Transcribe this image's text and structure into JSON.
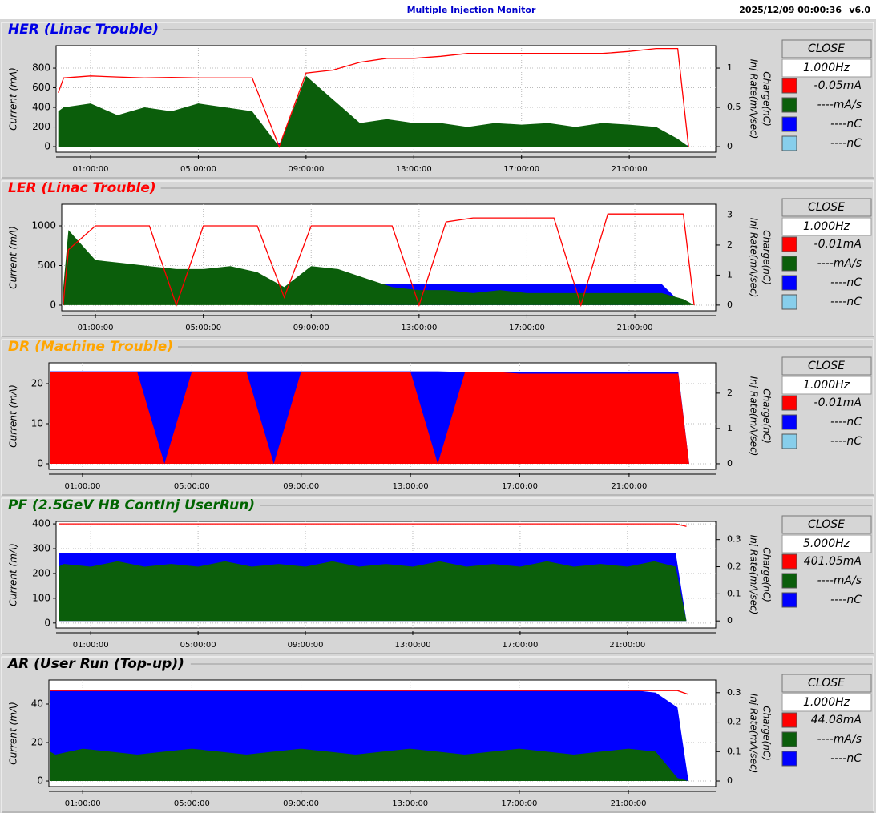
{
  "header": {
    "title": "Multiple Injection Monitor",
    "timestamp": "2025/12/09 00:00:36",
    "version": "v6.0"
  },
  "chart_data": [
    {
      "type": "line",
      "title": "HER  (Linac Trouble)",
      "title_color": "#0000e6",
      "button": "CLOSE",
      "rate": "1.000Hz",
      "ylabel": "Current (mA)",
      "y2labels": [
        "Charge(nC)",
        "Inj Rate(mA/sec)"
      ],
      "grid": true,
      "x": [
        -0.2,
        0,
        1,
        2,
        3,
        4,
        5,
        6,
        7,
        8,
        9,
        10,
        11,
        12,
        13,
        14,
        15,
        16,
        17,
        18,
        19,
        20,
        21,
        22,
        22.8,
        23.2
      ],
      "xlim": [
        -0.28,
        24.21
      ],
      "xticks": [
        {
          "value": 1,
          "label": "01:00:00"
        },
        {
          "value": 5,
          "label": "05:00:00"
        },
        {
          "value": 9,
          "label": "09:00:00"
        },
        {
          "value": 13,
          "label": "13:00:00"
        },
        {
          "value": 17,
          "label": "17:00:00"
        },
        {
          "value": 21,
          "label": "21:00:00"
        }
      ],
      "ylim": [
        -57,
        1029
      ],
      "yticks": [
        0,
        200,
        400,
        600,
        800
      ],
      "y2lim": [
        -0.071,
        1.286
      ],
      "y2ticks": [
        0,
        0.5,
        1
      ],
      "series": [
        {
          "name": "-0.05mA",
          "color": "#ff0000",
          "style": "line",
          "axis": "y",
          "values": [
            550,
            700,
            720,
            710,
            700,
            705,
            700,
            700,
            700,
            0,
            750,
            780,
            860,
            900,
            900,
            920,
            950,
            950,
            950,
            950,
            950,
            950,
            970,
            1000,
            1000,
            0
          ]
        },
        {
          "name": "----mA/s",
          "color": "#0b5e0b",
          "style": "area",
          "axis": "y2",
          "values": [
            0.45,
            0.5,
            0.55,
            0.4,
            0.5,
            0.45,
            0.55,
            0.5,
            0.45,
            0,
            0.9,
            0.6,
            0.3,
            0.35,
            0.3,
            0.3,
            0.25,
            0.3,
            0.28,
            0.3,
            0.25,
            0.3,
            0.28,
            0.25,
            0.1,
            0
          ]
        },
        {
          "name": "----nC",
          "color": "#0000ff",
          "style": "area",
          "axis": "y2",
          "values": [
            0,
            0,
            0,
            0,
            0,
            0,
            0,
            0,
            0,
            0.05,
            0.05,
            0.04,
            0,
            0,
            0,
            0,
            0,
            0,
            0,
            0,
            0,
            0,
            0,
            0,
            0,
            0.02
          ]
        },
        {
          "name": "----nC",
          "color": "#87ceeb",
          "style": "area",
          "axis": "y2",
          "values": [
            0,
            0,
            0,
            0,
            0,
            0,
            0,
            0,
            0,
            0,
            0,
            0,
            0,
            0,
            0,
            0,
            0,
            0,
            0,
            0,
            0,
            0,
            0,
            0,
            0,
            0
          ]
        }
      ]
    },
    {
      "type": "line",
      "title": "LER  (Linac Trouble)",
      "title_color": "#ff0000",
      "button": "CLOSE",
      "rate": "1.000Hz",
      "ylabel": "Current (mA)",
      "y2labels": [
        "Charge(nC)",
        "Inj Rate(mA/sec)"
      ],
      "grid": true,
      "x": [
        -0.2,
        0,
        1,
        2,
        3,
        4,
        5,
        6,
        7,
        8,
        9,
        10,
        11,
        12,
        13,
        14,
        15,
        16,
        17,
        18,
        19,
        20,
        21,
        22,
        22.8,
        23.2
      ],
      "xlim": [
        -0.25,
        24.0
      ],
      "xticks": [
        {
          "value": 1,
          "label": "01:00:00"
        },
        {
          "value": 5,
          "label": "05:00:00"
        },
        {
          "value": 9,
          "label": "09:00:00"
        },
        {
          "value": 13,
          "label": "13:00:00"
        },
        {
          "value": 17,
          "label": "17:00:00"
        },
        {
          "value": 21,
          "label": "21:00:00"
        }
      ],
      "ylim": [
        -71,
        1273
      ],
      "yticks": [
        0,
        500,
        1000
      ],
      "y2lim": [
        -0.19,
        3.36
      ],
      "y2ticks": [
        0,
        1,
        2,
        3
      ],
      "series": [
        {
          "name": "-0.01mA",
          "color": "#ff0000",
          "style": "line",
          "axis": "y",
          "values": [
            0,
            700,
            1000,
            1000,
            1000,
            0,
            1000,
            1000,
            1000,
            100,
            1000,
            1000,
            1000,
            1000,
            0,
            1050,
            1100,
            1100,
            1100,
            1100,
            0,
            1150,
            1150,
            1150,
            1150,
            0
          ]
        },
        {
          "name": "----mA/s",
          "color": "#0b5e0b",
          "style": "area",
          "axis": "y2",
          "values": [
            0.5,
            2.5,
            1.5,
            1.4,
            1.3,
            1.2,
            1.2,
            1.3,
            1.1,
            0.6,
            1.3,
            1.2,
            0.9,
            0.6,
            0.5,
            0.5,
            0.4,
            0.5,
            0.4,
            0.4,
            0.4,
            0.4,
            0.4,
            0.4,
            0.2,
            0
          ]
        },
        {
          "name": "----nC",
          "color": "#0000ff",
          "style": "area",
          "axis": "y2",
          "values": [
            0,
            0,
            0,
            0,
            0,
            0,
            0,
            0,
            0,
            0,
            0,
            0,
            0.7,
            0.7,
            0.7,
            0.7,
            0.7,
            0.7,
            0.7,
            0.7,
            0.7,
            0.7,
            0.7,
            0.7,
            0,
            0
          ]
        },
        {
          "name": "----nC",
          "color": "#87ceeb",
          "style": "area",
          "axis": "y2",
          "values": [
            0,
            0,
            0,
            0,
            0,
            0,
            0,
            0,
            0,
            0,
            0,
            0,
            0,
            0,
            0,
            0,
            0,
            0,
            0,
            0,
            0,
            0,
            0,
            0,
            0,
            0
          ]
        }
      ]
    },
    {
      "type": "line",
      "title": "DR  (Machine Trouble)",
      "title_color": "#ffa500",
      "button": "CLOSE",
      "rate": "1.000Hz",
      "ylabel": "Current (mA)",
      "y2labels": [
        "Charge(nC)",
        "Inj Rate(mA/sec)"
      ],
      "grid": true,
      "x": [
        -0.2,
        0,
        1,
        2,
        3,
        4,
        5,
        6,
        7,
        8,
        9,
        10,
        11,
        12,
        13,
        14,
        15,
        16,
        17,
        18,
        19,
        20,
        21,
        22,
        22.8,
        23.2
      ],
      "xlim": [
        -0.23,
        24.17
      ],
      "xticks": [
        {
          "value": 1,
          "label": "01:00:00"
        },
        {
          "value": 5,
          "label": "05:00:00"
        },
        {
          "value": 9,
          "label": "09:00:00"
        },
        {
          "value": 13,
          "label": "13:00:00"
        },
        {
          "value": 17,
          "label": "17:00:00"
        },
        {
          "value": 21,
          "label": "21:00:00"
        }
      ],
      "ylim": [
        -1.4,
        25.2
      ],
      "yticks": [
        0,
        10,
        20
      ],
      "y2lim": [
        -0.16,
        2.86
      ],
      "y2ticks": [
        0,
        1,
        2
      ],
      "series": [
        {
          "name": "-0.01mA",
          "color": "#ff0000",
          "style": "area",
          "axis": "y",
          "values": [
            23,
            23,
            23,
            23,
            23,
            0,
            23,
            23,
            23,
            0,
            23,
            23,
            23,
            23,
            23,
            0,
            23,
            23,
            22.5,
            22.5,
            22.5,
            22.5,
            22.5,
            22.5,
            22.5,
            0
          ]
        },
        {
          "name": "----nC",
          "color": "#0000ff",
          "style": "area",
          "axis": "y2",
          "values": [
            2.62,
            2.62,
            2.62,
            2.62,
            2.62,
            2.62,
            2.62,
            2.62,
            2.62,
            2.62,
            2.62,
            2.62,
            2.62,
            2.62,
            2.62,
            2.62,
            2.6,
            2.6,
            2.6,
            2.6,
            2.6,
            2.6,
            2.6,
            2.6,
            2.6,
            0
          ]
        },
        {
          "name": "----nC",
          "color": "#87ceeb",
          "style": "area",
          "axis": "y2",
          "values": [
            0,
            0,
            0,
            0,
            0,
            0,
            0,
            0,
            0,
            0,
            0,
            0,
            0,
            0,
            2.45,
            2.45,
            2.45,
            2.45,
            2.45,
            2.45,
            2.45,
            2.45,
            2.45,
            2.45,
            2.45,
            0
          ]
        }
      ]
    },
    {
      "type": "line",
      "title": "PF  (2.5GeV HB ContInj UserRun)",
      "title_color": "#006400",
      "button": "CLOSE",
      "rate": "5.000Hz",
      "ylabel": "Current (mA)",
      "y2labels": [
        "Charge(nC)",
        "Inj Rate(mA/sec)"
      ],
      "grid": true,
      "x": [
        -0.2,
        0,
        1,
        2,
        3,
        4,
        5,
        6,
        7,
        8,
        9,
        10,
        11,
        12,
        13,
        14,
        15,
        16,
        17,
        18,
        19,
        20,
        21,
        22,
        22.8,
        23.2
      ],
      "xlim": [
        -0.29,
        24.29
      ],
      "xticks": [
        {
          "value": 1,
          "label": "01:00:00"
        },
        {
          "value": 5,
          "label": "05:00:00"
        },
        {
          "value": 9,
          "label": "09:00:00"
        },
        {
          "value": 13,
          "label": "13:00:00"
        },
        {
          "value": 17,
          "label": "17:00:00"
        },
        {
          "value": 21,
          "label": "21:00:00"
        }
      ],
      "ylim": [
        -20,
        410
      ],
      "yticks": [
        0,
        100,
        200,
        300,
        400
      ],
      "y2lim": [
        -0.026,
        0.367
      ],
      "y2ticks": [
        0,
        0.1,
        0.2,
        0.3
      ],
      "series": [
        {
          "name": "401.05mA",
          "color": "#ff0000",
          "style": "line",
          "axis": "y",
          "values": [
            400,
            400,
            400,
            400,
            400,
            400,
            400,
            400,
            400,
            400,
            400,
            400,
            400,
            400,
            400,
            400,
            400,
            400,
            400,
            400,
            400,
            400,
            400,
            400,
            400,
            390
          ]
        },
        {
          "name": "----mA/s",
          "color": "#0b5e0b",
          "style": "area",
          "axis": "y2",
          "values": [
            0.2,
            0.21,
            0.2,
            0.22,
            0.2,
            0.21,
            0.2,
            0.22,
            0.2,
            0.21,
            0.2,
            0.22,
            0.2,
            0.21,
            0.2,
            0.22,
            0.2,
            0.21,
            0.2,
            0.22,
            0.2,
            0.21,
            0.2,
            0.22,
            0.2,
            0
          ]
        },
        {
          "name": "----nC",
          "color": "#0000ff",
          "style": "area",
          "axis": "y2",
          "values": [
            0.25,
            0.25,
            0.25,
            0.25,
            0.25,
            0.25,
            0.25,
            0.25,
            0.25,
            0.25,
            0.25,
            0.25,
            0.25,
            0.25,
            0.25,
            0.25,
            0.25,
            0.25,
            0.25,
            0.25,
            0.25,
            0.25,
            0.25,
            0.25,
            0.25,
            0
          ]
        }
      ]
    },
    {
      "type": "line",
      "title": "AR  (User Run (Top-up))",
      "title_color": "#000000",
      "button": "CLOSE",
      "rate": "1.000Hz",
      "ylabel": "Current (mA)",
      "y2labels": [
        "Charge(nC)",
        "Inj Rate(mA/sec)"
      ],
      "grid": true,
      "x": [
        -0.2,
        0,
        1,
        2,
        3,
        4,
        5,
        6,
        7,
        8,
        9,
        10,
        11,
        12,
        13,
        14,
        15,
        16,
        17,
        18,
        19,
        20,
        21,
        22,
        22.8,
        23.2
      ],
      "xlim": [
        -0.24,
        24.2
      ],
      "xticks": [
        {
          "value": 1,
          "label": "01:00:00"
        },
        {
          "value": 5,
          "label": "05:00:00"
        },
        {
          "value": 9,
          "label": "09:00:00"
        },
        {
          "value": 13,
          "label": "13:00:00"
        },
        {
          "value": 17,
          "label": "17:00:00"
        },
        {
          "value": 21,
          "label": "21:00:00"
        }
      ],
      "ylim": [
        -2.9,
        52.5
      ],
      "yticks": [
        0,
        20,
        40
      ],
      "y2lim": [
        -0.019,
        0.343
      ],
      "y2ticks": [
        0,
        0.1,
        0.2,
        0.3
      ],
      "series": [
        {
          "name": "44.08mA",
          "color": "#ff0000",
          "style": "line",
          "axis": "y",
          "values": [
            47,
            47,
            47,
            47,
            47,
            47,
            47,
            47,
            47,
            47,
            47,
            47,
            47,
            47,
            47,
            47,
            47,
            47,
            47,
            47,
            47,
            47,
            47,
            47,
            47,
            45
          ]
        },
        {
          "name": "----mA/s",
          "color": "#0b5e0b",
          "style": "area",
          "axis": "y2",
          "values": [
            0.1,
            0.09,
            0.11,
            0.1,
            0.09,
            0.1,
            0.11,
            0.1,
            0.09,
            0.1,
            0.11,
            0.1,
            0.09,
            0.1,
            0.11,
            0.1,
            0.09,
            0.1,
            0.11,
            0.1,
            0.09,
            0.1,
            0.11,
            0.1,
            0.01,
            0
          ]
        },
        {
          "name": "----nC",
          "color": "#0000ff",
          "style": "area",
          "axis": "y2",
          "values": [
            0.31,
            0.31,
            0.31,
            0.31,
            0.31,
            0.31,
            0.31,
            0.31,
            0.31,
            0.31,
            0.31,
            0.31,
            0.31,
            0.31,
            0.31,
            0.31,
            0.31,
            0.31,
            0.31,
            0.31,
            0.31,
            0.31,
            0.31,
            0.3,
            0.25,
            0
          ]
        }
      ]
    }
  ]
}
